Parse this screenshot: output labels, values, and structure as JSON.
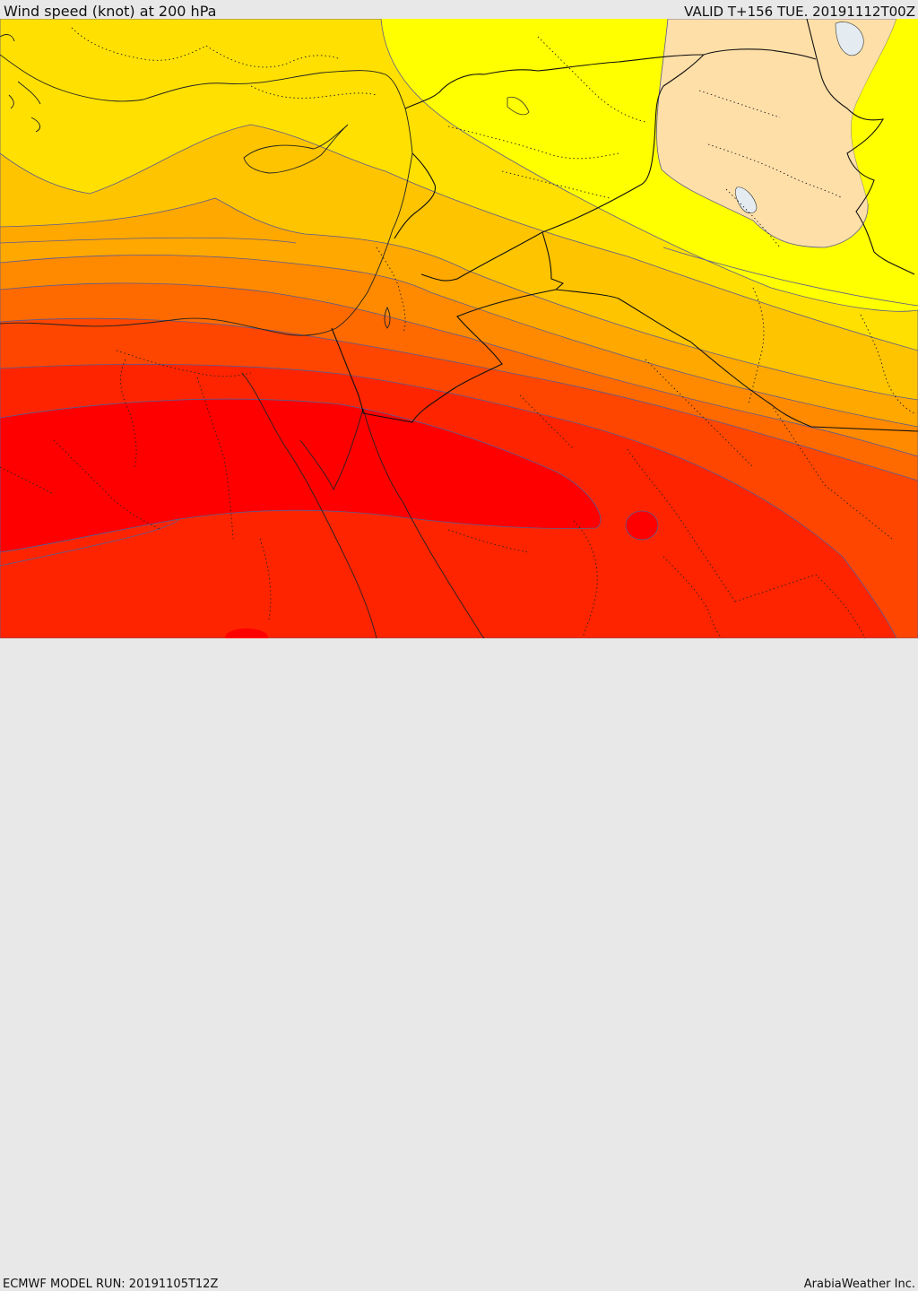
{
  "header": {
    "title": "Wind speed (knot) at 200 hPa",
    "valid": "VALID T+156 TUE. 20191112T00Z"
  },
  "footer": {
    "model_run": "ECMWF MODEL RUN: 20191105T12Z",
    "credit": "ArabiaWeather Inc."
  },
  "colors": {
    "band_lightest": "#ffff00",
    "band_2": "#ffe000",
    "band_3": "#ffc400",
    "band_4": "#ffa800",
    "band_5": "#ff8a00",
    "band_6": "#ff6a00",
    "band_7": "#ff4600",
    "band_8": "#ff2400",
    "band_core": "#ff0000",
    "low_speed_zone": "#ffdfa8",
    "contour_line": "#5b5b8f",
    "border_line": "#1a1a1a",
    "water_body": "#e4ecf2"
  }
}
